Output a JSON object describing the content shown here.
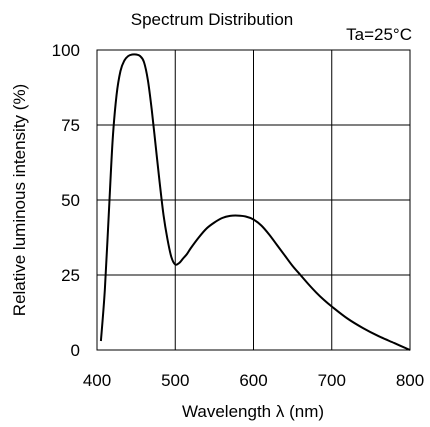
{
  "chart_data": {
    "type": "line",
    "title": "Spectrum Distribution",
    "annotation": "Ta=25°C",
    "xlabel": "Wavelength  λ (nm)",
    "ylabel": "Relative luminous intensity (%)",
    "xlim": [
      400,
      800
    ],
    "ylim": [
      0,
      100
    ],
    "xticks": [
      400,
      500,
      600,
      700,
      800
    ],
    "yticks": [
      0,
      25,
      50,
      75,
      100
    ],
    "grid": true,
    "series": [
      {
        "color": "#000000",
        "x": [
          405,
          410,
          415,
          420,
          425,
          430,
          435,
          440,
          445,
          450,
          455,
          460,
          465,
          470,
          475,
          480,
          485,
          490,
          495,
          500,
          505,
          510,
          515,
          520,
          530,
          540,
          550,
          560,
          570,
          580,
          590,
          600,
          610,
          620,
          630,
          640,
          650,
          660,
          670,
          680,
          690,
          700,
          720,
          740,
          760,
          780,
          800
        ],
        "y": [
          3,
          20,
          45,
          70,
          85,
          93,
          96.5,
          98,
          98.5,
          98.5,
          98,
          96,
          90,
          80,
          68,
          56,
          45,
          37,
          31,
          28.5,
          29,
          30.5,
          32,
          34,
          37.5,
          40.5,
          42.5,
          44,
          44.7,
          44.8,
          44.5,
          43.5,
          41.5,
          38.5,
          35,
          31.5,
          28,
          25,
          22,
          19.2,
          16.7,
          14.5,
          10.5,
          7.3,
          4.6,
          2.3,
          0
        ]
      }
    ]
  }
}
